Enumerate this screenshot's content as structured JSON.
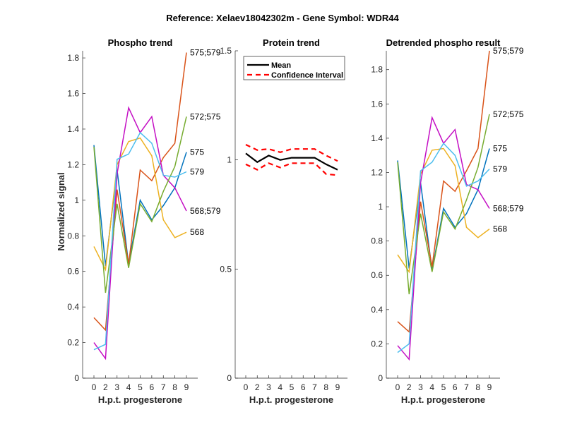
{
  "title": "Reference:  Xelaev18042302m - Gene Symbol:  WDR44",
  "ylabel": "Normalized signal",
  "chart_data": [
    {
      "type": "line",
      "title": "Phospho trend",
      "xlabel": "H.p.t. progesterone",
      "ylabel": "Normalized signal",
      "categories": [
        "0",
        "2",
        "3",
        "4",
        "5",
        "6",
        "7",
        "8",
        "9"
      ],
      "ylim": [
        0,
        1.84
      ],
      "yticks": [
        "0",
        "0.2",
        "0.4",
        "0.6",
        "0.8",
        "1",
        "1.2",
        "1.4",
        "1.6",
        "1.8"
      ],
      "series": [
        {
          "name": "575",
          "color": "#0072BD",
          "values": [
            1.31,
            0.63,
            1.17,
            0.64,
            1.0,
            0.89,
            0.97,
            1.07,
            1.27
          ]
        },
        {
          "name": "575;579",
          "color": "#D95319",
          "values": [
            0.34,
            0.27,
            1.06,
            0.64,
            1.17,
            1.11,
            1.24,
            1.32,
            1.83
          ]
        },
        {
          "name": "568",
          "color": "#EDB120",
          "values": [
            0.74,
            0.61,
            1.2,
            1.33,
            1.35,
            1.25,
            0.89,
            0.79,
            0.82
          ]
        },
        {
          "name": "568;579",
          "color": "#C40FC4",
          "values": [
            0.2,
            0.11,
            1.15,
            1.52,
            1.38,
            1.47,
            1.14,
            1.07,
            0.94
          ]
        },
        {
          "name": "572;575",
          "color": "#77AC30",
          "values": [
            1.3,
            0.48,
            0.98,
            0.62,
            0.98,
            0.88,
            1.05,
            1.19,
            1.47
          ]
        },
        {
          "name": "579",
          "color": "#4DBEEE",
          "values": [
            0.16,
            0.19,
            1.23,
            1.26,
            1.38,
            1.32,
            1.14,
            1.13,
            1.16
          ]
        }
      ]
    },
    {
      "type": "line",
      "title": "Protein trend",
      "xlabel": "H.p.t. progesterone",
      "categories": [
        "0",
        "2",
        "3",
        "4",
        "5",
        "6",
        "7",
        "8",
        "9"
      ],
      "ylim": [
        0,
        1.5
      ],
      "yticks": [
        "0",
        "0.5",
        "1",
        "1.5"
      ],
      "legend": {
        "placement": "top-right",
        "entries": [
          "Mean",
          "Confidence Interval"
        ]
      },
      "series": [
        {
          "name": "Mean",
          "color": "#000000",
          "style": "solid",
          "values": [
            1.03,
            0.99,
            1.02,
            1.0,
            1.01,
            1.01,
            1.01,
            0.98,
            0.955
          ]
        },
        {
          "name": "Confidence Interval upper",
          "color": "#FF0000",
          "style": "dashed",
          "values": [
            1.07,
            1.045,
            1.05,
            1.035,
            1.05,
            1.05,
            1.05,
            1.02,
            0.995
          ]
        },
        {
          "name": "Confidence Interval lower",
          "color": "#FF0000",
          "style": "dashed",
          "values": [
            0.98,
            0.955,
            0.985,
            0.965,
            0.985,
            0.985,
            0.985,
            0.935,
            0.93
          ]
        }
      ]
    },
    {
      "type": "line",
      "title": "Detrended phospho result",
      "xlabel": "H.p.t. progesterone",
      "categories": [
        "0",
        "2",
        "3",
        "4",
        "5",
        "6",
        "7",
        "8",
        "9"
      ],
      "ylim": [
        0,
        1.91
      ],
      "yticks": [
        "0",
        "0.2",
        "0.4",
        "0.6",
        "0.8",
        "1",
        "1.2",
        "1.4",
        "1.6",
        "1.8"
      ],
      "series": [
        {
          "name": "575",
          "color": "#0072BD",
          "values": [
            1.27,
            0.64,
            1.14,
            0.63,
            0.99,
            0.88,
            0.96,
            1.1,
            1.34
          ]
        },
        {
          "name": "575;579",
          "color": "#D95319",
          "values": [
            0.33,
            0.27,
            1.03,
            0.65,
            1.15,
            1.09,
            1.21,
            1.34,
            1.91
          ]
        },
        {
          "name": "568",
          "color": "#EDB120",
          "values": [
            0.72,
            0.62,
            1.19,
            1.33,
            1.34,
            1.24,
            0.88,
            0.82,
            0.87
          ]
        },
        {
          "name": "568;579",
          "color": "#C40FC4",
          "values": [
            0.19,
            0.11,
            1.14,
            1.52,
            1.37,
            1.45,
            1.13,
            1.1,
            0.99
          ]
        },
        {
          "name": "572;575",
          "color": "#77AC30",
          "values": [
            1.26,
            0.49,
            0.96,
            0.62,
            0.97,
            0.87,
            1.04,
            1.23,
            1.54
          ]
        },
        {
          "name": "579",
          "color": "#4DBEEE",
          "values": [
            0.15,
            0.2,
            1.21,
            1.26,
            1.37,
            1.3,
            1.12,
            1.15,
            1.22
          ]
        }
      ]
    }
  ]
}
